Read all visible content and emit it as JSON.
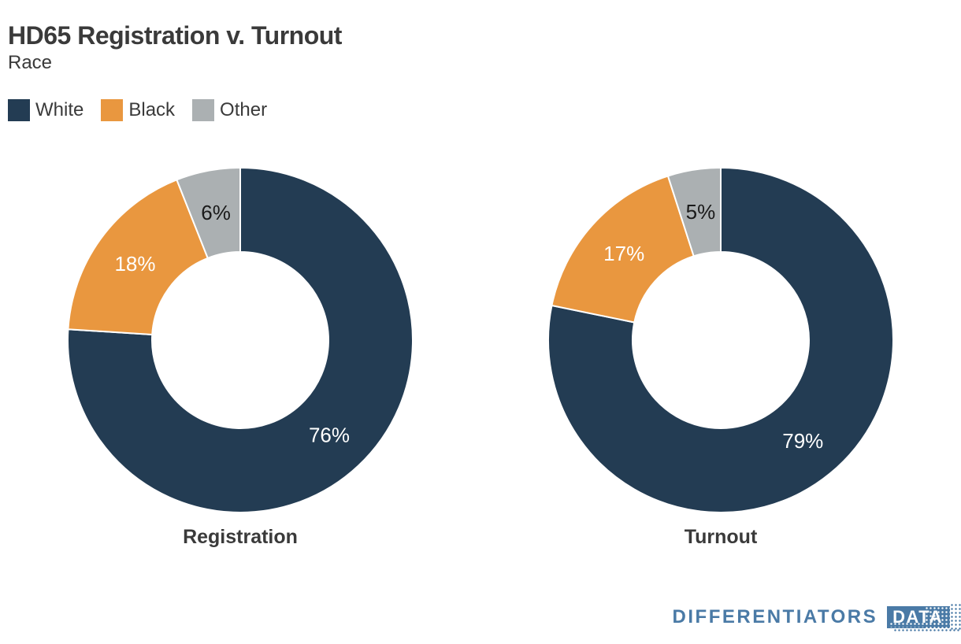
{
  "header": {
    "title": "HD65 Registration v. Turnout",
    "subtitle": "Race"
  },
  "legend": {
    "items": [
      {
        "label": "White",
        "color": "#233C53"
      },
      {
        "label": "Black",
        "color": "#E9973F"
      },
      {
        "label": "Other",
        "color": "#ABB0B2"
      }
    ]
  },
  "chart_data": [
    {
      "type": "pie",
      "title": "Registration",
      "labels": [
        "White",
        "Black",
        "Other"
      ],
      "values": [
        76,
        18,
        6
      ],
      "display_values": [
        "76%",
        "18%",
        "6%"
      ],
      "unit": "%",
      "colors": [
        "#233C53",
        "#E9973F",
        "#ABB0B2"
      ],
      "label_text_colors": [
        "#FFFFFF",
        "#FFFFFF",
        "#1A1A1A"
      ],
      "donut": true,
      "inner_radius_ratio": 0.51,
      "start_angle_deg": 0,
      "direction": "clockwise",
      "legend_position": "top-left"
    },
    {
      "type": "pie",
      "title": "Turnout",
      "labels": [
        "White",
        "Black",
        "Other"
      ],
      "values": [
        79,
        17,
        5
      ],
      "display_values": [
        "79%",
        "17%",
        "5%"
      ],
      "unit": "%",
      "colors": [
        "#233C53",
        "#E9973F",
        "#ABB0B2"
      ],
      "label_text_colors": [
        "#FFFFFF",
        "#FFFFFF",
        "#1A1A1A"
      ],
      "donut": true,
      "inner_radius_ratio": 0.51,
      "start_angle_deg": 0,
      "direction": "clockwise",
      "legend_position": "top-left"
    }
  ],
  "footer": {
    "brand": "DIFFERENTIATORS",
    "brand_box": "DATA",
    "brand_color": "#4A7AA6"
  }
}
